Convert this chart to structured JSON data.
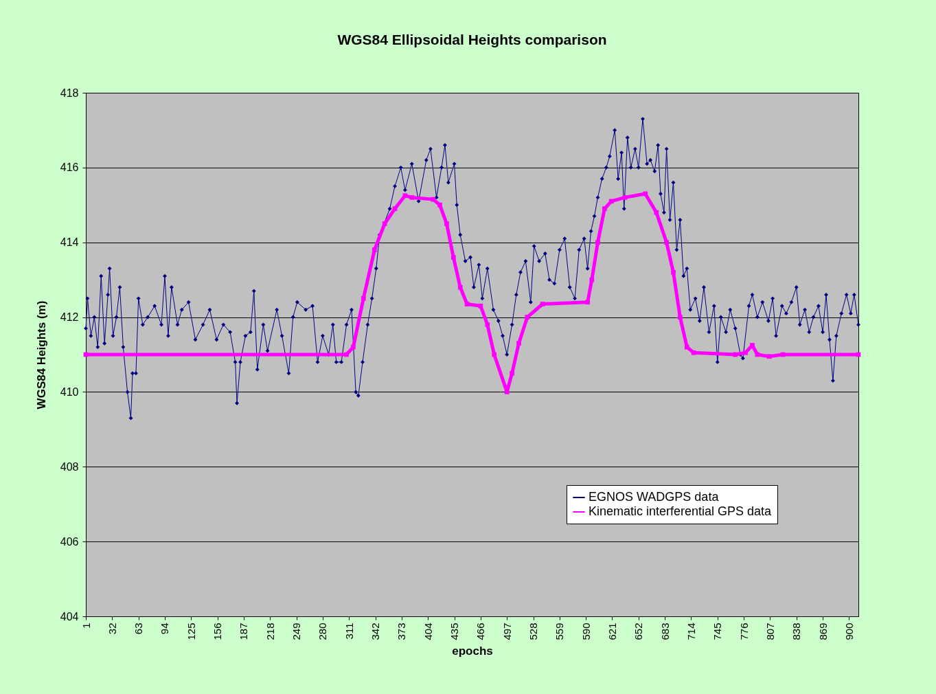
{
  "chart_data": {
    "type": "line",
    "title": "WGS84 Ellipsoidal Heights comparison",
    "xlabel": "epochs",
    "ylabel": "WGS84 Heights (m)",
    "xlim": [
      1,
      911
    ],
    "xticks": [
      1,
      32,
      63,
      94,
      125,
      156,
      187,
      218,
      249,
      280,
      311,
      342,
      373,
      404,
      435,
      466,
      497,
      528,
      559,
      590,
      621,
      652,
      683,
      714,
      745,
      776,
      807,
      838,
      869,
      900
    ],
    "ylim": [
      404,
      418
    ],
    "yticks": [
      404,
      406,
      408,
      410,
      412,
      414,
      416,
      418
    ],
    "grid": "y",
    "legend": "bottom right",
    "series": [
      {
        "name": "EGNOS WADGPS data",
        "color": "#000080",
        "marker": "diamond",
        "x": [
          1,
          3,
          7,
          11,
          15,
          19,
          23,
          27,
          29,
          33,
          37,
          41,
          45,
          50,
          54,
          56,
          60,
          63,
          68,
          74,
          82,
          90,
          94,
          98,
          102,
          109,
          114,
          122,
          130,
          139,
          147,
          155,
          163,
          171,
          177,
          179,
          183,
          189,
          195,
          199,
          203,
          210,
          215,
          226,
          232,
          240,
          245,
          250,
          260,
          268,
          274,
          280,
          287,
          292,
          296,
          302,
          308,
          314,
          319,
          322,
          327,
          333,
          338,
          343,
          347,
          359,
          365,
          372,
          377,
          385,
          393,
          402,
          407,
          414,
          420,
          424,
          428,
          435,
          438,
          442,
          448,
          454,
          458,
          464,
          468,
          474,
          481,
          487,
          492,
          497,
          503,
          508,
          513,
          519,
          525,
          529,
          535,
          542,
          547,
          553,
          559,
          565,
          571,
          577,
          582,
          588,
          592,
          596,
          600,
          604,
          609,
          614,
          618,
          624,
          628,
          632,
          635,
          639,
          643,
          648,
          652,
          657,
          662,
          666,
          671,
          675,
          678,
          682,
          685,
          689,
          693,
          697,
          701,
          705,
          709,
          713,
          719,
          724,
          729,
          735,
          741,
          745,
          749,
          755,
          760,
          766,
          772,
          775,
          782,
          786,
          792,
          798,
          805,
          810,
          814,
          821,
          826,
          832,
          838,
          842,
          848,
          853,
          858,
          864,
          869,
          873,
          877,
          881,
          885,
          891,
          897,
          902,
          906,
          911
        ],
        "values": [
          411.7,
          412.5,
          411.5,
          412.0,
          411.2,
          413.1,
          411.3,
          412.6,
          413.3,
          411.5,
          412.0,
          412.8,
          411.2,
          410.0,
          409.3,
          410.5,
          410.5,
          412.5,
          411.8,
          412.0,
          412.3,
          411.8,
          413.1,
          411.5,
          412.8,
          411.8,
          412.2,
          412.4,
          411.4,
          411.8,
          412.2,
          411.4,
          411.8,
          411.6,
          410.8,
          409.7,
          410.8,
          411.5,
          411.6,
          412.7,
          410.6,
          411.8,
          411.1,
          412.2,
          411.5,
          410.5,
          412.0,
          412.4,
          412.2,
          412.3,
          410.8,
          411.5,
          411.0,
          411.8,
          410.8,
          410.8,
          411.8,
          412.2,
          410.0,
          409.9,
          410.8,
          411.8,
          412.5,
          413.3,
          414.2,
          414.9,
          415.5,
          416.0,
          415.4,
          416.1,
          415.1,
          416.2,
          416.5,
          415.2,
          416.0,
          416.6,
          415.6,
          416.1,
          415.0,
          414.2,
          413.5,
          413.6,
          412.8,
          413.4,
          412.5,
          413.3,
          412.2,
          411.9,
          411.5,
          411.0,
          411.8,
          412.6,
          413.2,
          413.5,
          412.4,
          413.9,
          413.5,
          413.7,
          413.0,
          412.9,
          413.8,
          414.1,
          412.8,
          412.5,
          413.8,
          414.1,
          413.3,
          414.3,
          414.7,
          415.2,
          415.7,
          416.0,
          416.3,
          417.0,
          415.7,
          416.4,
          414.9,
          416.8,
          416.0,
          416.5,
          416.0,
          417.3,
          416.1,
          416.2,
          415.9,
          416.6,
          415.3,
          414.8,
          416.5,
          414.6,
          415.6,
          413.8,
          414.6,
          413.1,
          413.3,
          412.2,
          412.5,
          411.9,
          412.8,
          411.6,
          412.3,
          410.8,
          412.0,
          411.6,
          412.2,
          411.7,
          411.0,
          410.9,
          412.3,
          412.6,
          412.0,
          412.4,
          411.9,
          412.5,
          411.5,
          412.3,
          412.1,
          412.4,
          412.8,
          411.8,
          412.2,
          411.6,
          412.0,
          412.3,
          411.6,
          412.6,
          411.4,
          410.3,
          411.5,
          412.1,
          412.6,
          412.1,
          412.6,
          411.8
        ]
      },
      {
        "name": "Kinematic interferential GPS data",
        "color": "#ff00ff",
        "marker": "square",
        "x": [
          1,
          308,
          316,
          328,
          341,
          353,
          365,
          377,
          385,
          410,
          418,
          426,
          434,
          442,
          450,
          466,
          474,
          482,
          497,
          503,
          511,
          521,
          539,
          592,
          597,
          604,
          612,
          620,
          636,
          660,
          673,
          685,
          693,
          701,
          709,
          717,
          766,
          778,
          786,
          792,
          806,
          822,
          911
        ],
        "values": [
          411.0,
          411.0,
          411.2,
          412.5,
          413.8,
          414.5,
          414.9,
          415.25,
          415.2,
          415.15,
          415.0,
          414.5,
          413.6,
          412.8,
          412.35,
          412.3,
          411.8,
          411.0,
          410.0,
          410.5,
          411.3,
          412.0,
          412.35,
          412.4,
          413.0,
          414.0,
          414.9,
          415.1,
          415.2,
          415.3,
          414.8,
          414.0,
          413.2,
          412.0,
          411.2,
          411.05,
          411.0,
          411.05,
          411.25,
          411.0,
          410.95,
          411.0,
          411.0
        ]
      }
    ]
  }
}
